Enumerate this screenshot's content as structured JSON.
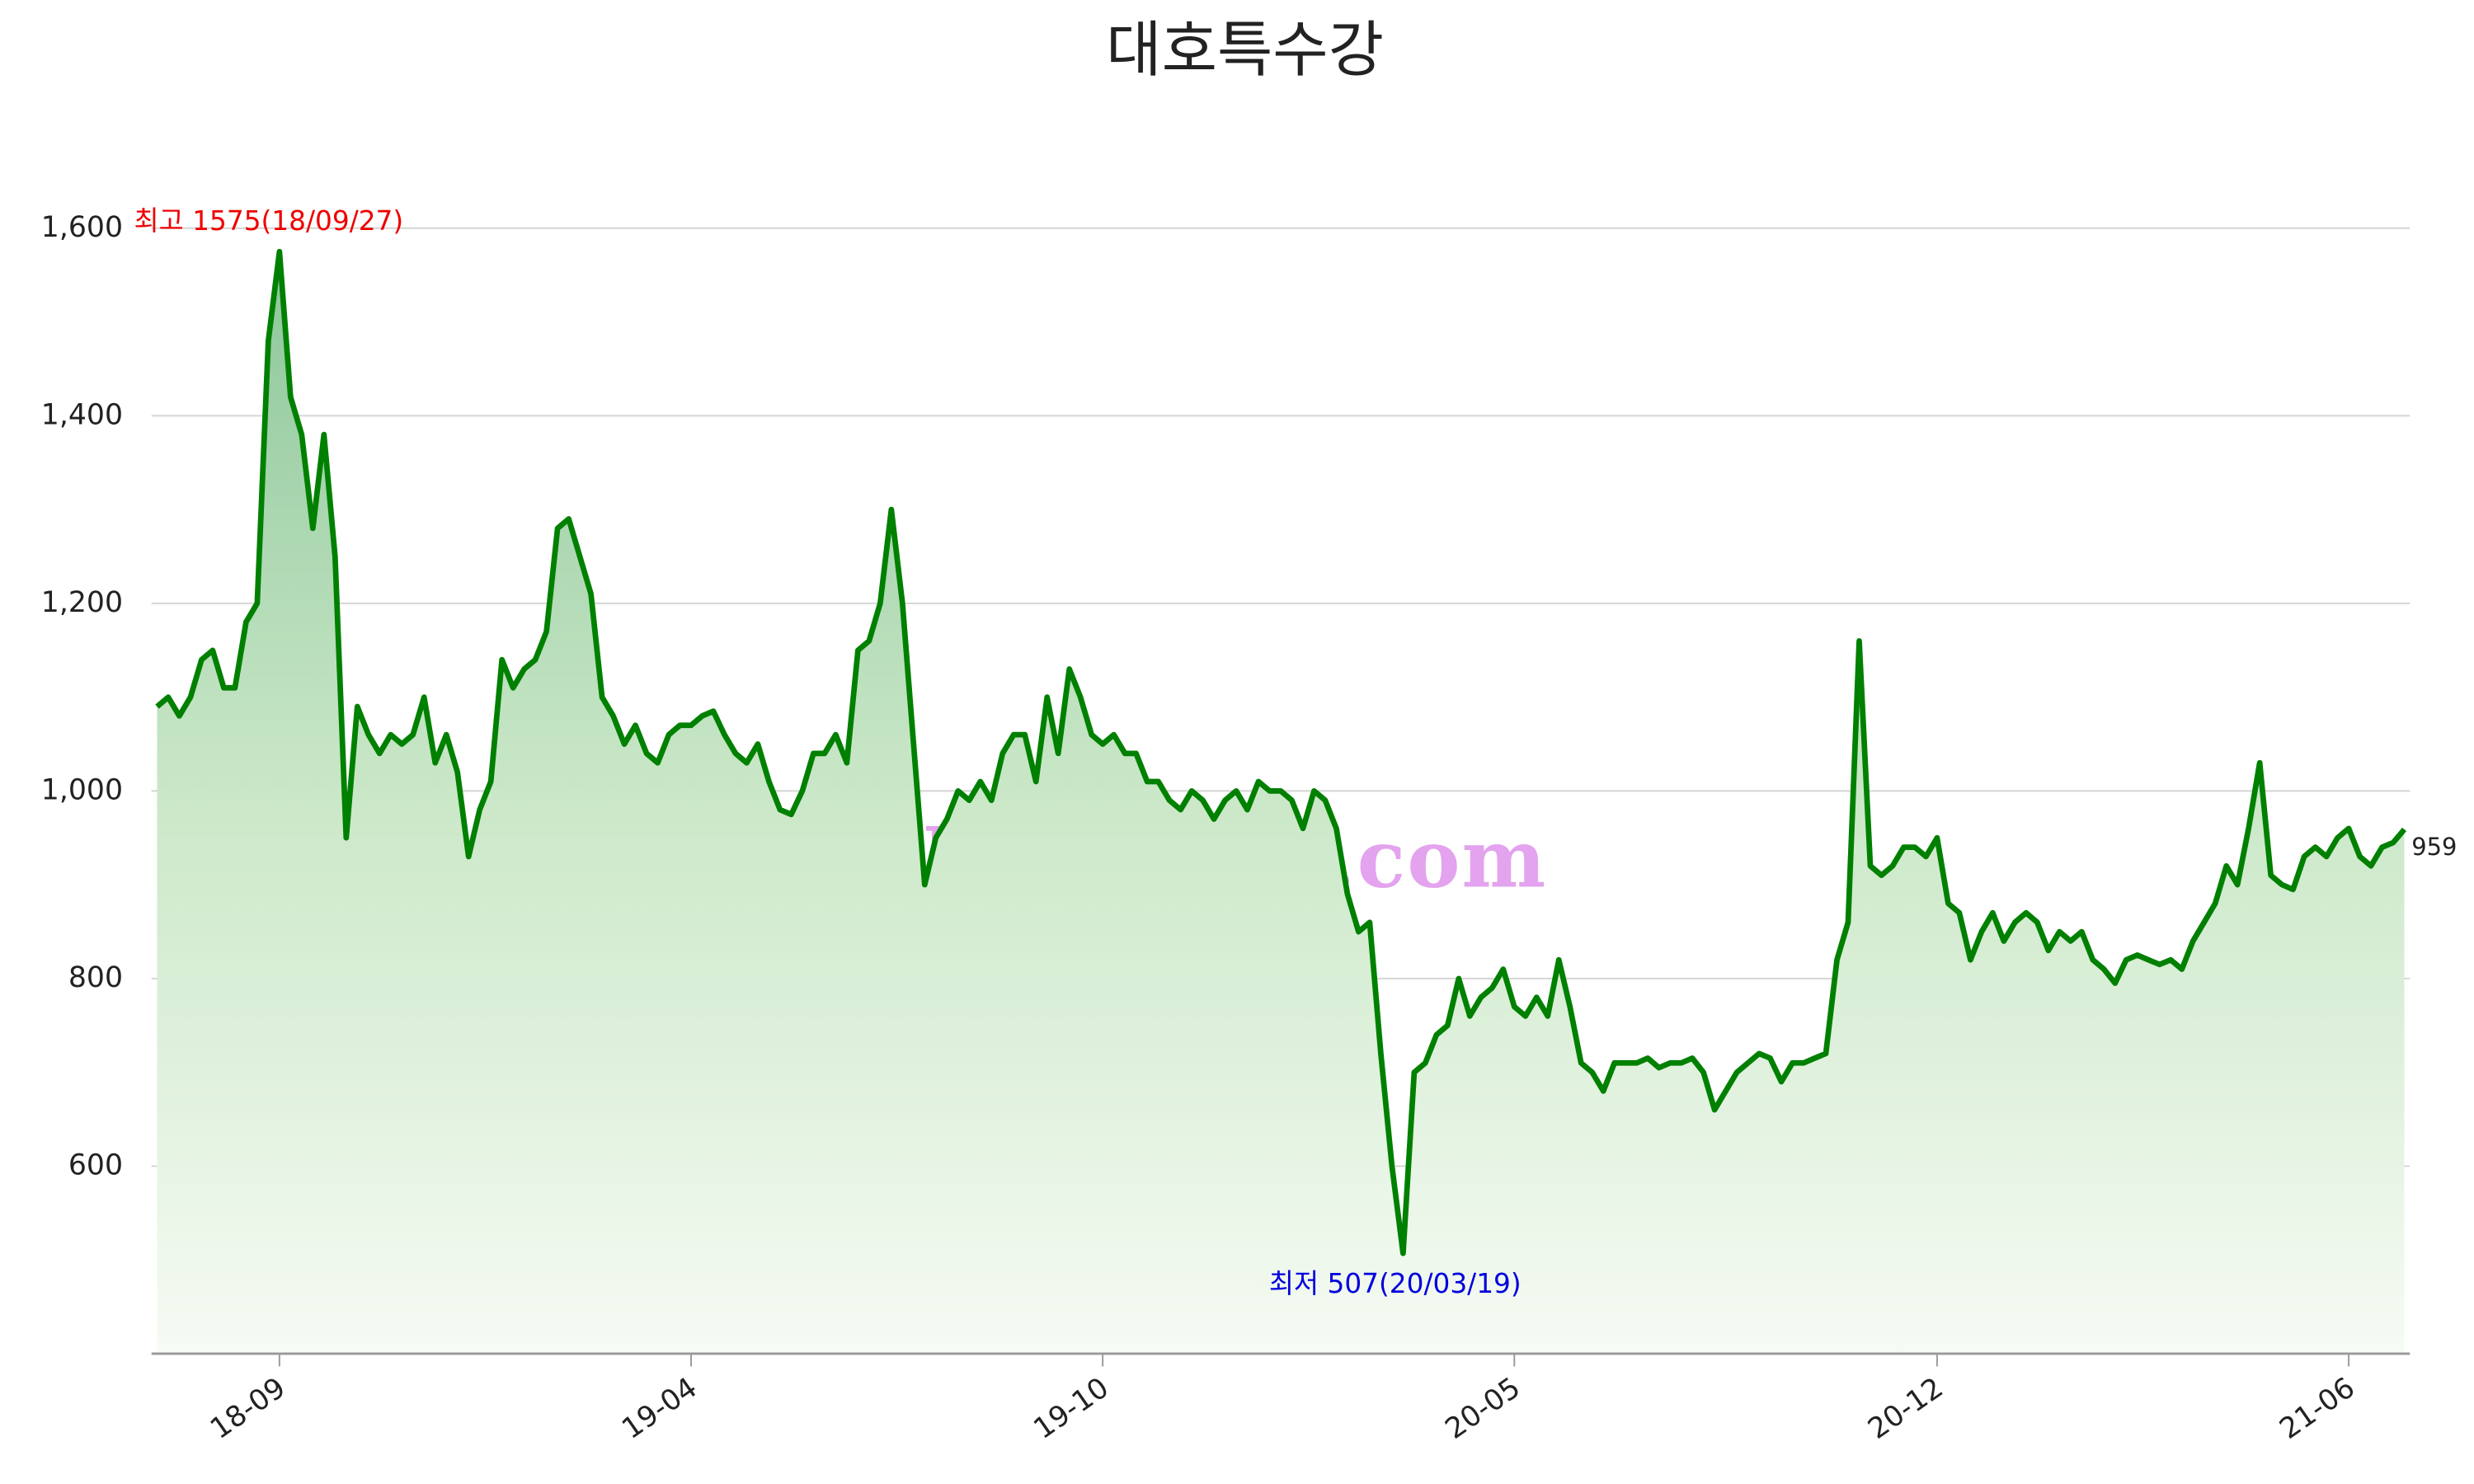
{
  "chart_data": {
    "type": "line",
    "title": "대호특수강",
    "categories": [
      null,
      null,
      null,
      null,
      null,
      null,
      null,
      null,
      null,
      null,
      null,
      "18-09",
      null,
      null,
      null,
      null,
      null,
      null,
      null,
      null,
      null,
      null,
      null,
      null,
      null,
      null,
      null,
      null,
      null,
      null,
      null,
      null,
      null,
      null,
      null,
      null,
      null,
      null,
      null,
      null,
      null,
      null,
      null,
      null,
      null,
      null,
      null,
      null,
      "19-04",
      null,
      null,
      null,
      null,
      null,
      null,
      null,
      null,
      null,
      null,
      null,
      null,
      null,
      null,
      null,
      null,
      null,
      null,
      null,
      null,
      null,
      null,
      null,
      null,
      null,
      null,
      null,
      null,
      null,
      null,
      null,
      null,
      null,
      null,
      null,
      null,
      "19-10",
      null,
      null,
      null,
      null,
      null,
      null,
      null,
      null,
      null,
      null,
      null,
      null,
      null,
      null,
      null,
      null,
      null,
      null,
      null,
      null,
      null,
      null,
      null,
      null,
      null,
      null,
      null,
      null,
      null,
      null,
      null,
      null,
      null,
      null,
      null,
      null,
      "20-05",
      null,
      null,
      null,
      null,
      null,
      null,
      null,
      null,
      null,
      null,
      null,
      null,
      null,
      null,
      null,
      null,
      null,
      null,
      null,
      null,
      null,
      null,
      null,
      null,
      null,
      null,
      null,
      null,
      null,
      null,
      null,
      null,
      null,
      null,
      null,
      null,
      null,
      "20-12",
      null,
      null,
      null,
      null,
      null,
      null,
      null,
      null,
      null,
      null,
      null,
      null,
      null,
      null,
      null,
      null,
      null,
      null,
      null,
      null,
      null,
      null,
      null,
      null,
      null,
      null,
      null,
      null,
      null,
      null,
      null,
      null,
      null,
      null,
      null,
      null,
      "21-06",
      null,
      null,
      null,
      null,
      null
    ],
    "values": [
      1090,
      1100,
      1080,
      1100,
      1140,
      1150,
      1110,
      1110,
      1180,
      1200,
      1480,
      1575,
      1420,
      1380,
      1280,
      1380,
      1250,
      950,
      1090,
      1060,
      1040,
      1060,
      1050,
      1060,
      1100,
      1030,
      1060,
      1020,
      930,
      980,
      1010,
      1140,
      1110,
      1130,
      1140,
      1170,
      1280,
      1290,
      1250,
      1210,
      1100,
      1080,
      1050,
      1070,
      1040,
      1030,
      1060,
      1070,
      1070,
      1080,
      1085,
      1060,
      1040,
      1030,
      1050,
      1010,
      980,
      975,
      1000,
      1040,
      1040,
      1060,
      1030,
      1150,
      1160,
      1200,
      1300,
      1200,
      1050,
      900,
      950,
      970,
      1000,
      990,
      1010,
      990,
      1040,
      1060,
      1060,
      1010,
      1100,
      1040,
      1130,
      1100,
      1060,
      1050,
      1060,
      1040,
      1040,
      1010,
      1010,
      990,
      980,
      1000,
      990,
      970,
      990,
      1000,
      980,
      1010,
      1000,
      1000,
      990,
      960,
      1000,
      990,
      960,
      890,
      850,
      860,
      720,
      600,
      507,
      700,
      710,
      740,
      750,
      800,
      760,
      780,
      790,
      810,
      770,
      760,
      780,
      760,
      820,
      770,
      710,
      700,
      680,
      710,
      710,
      710,
      715,
      705,
      710,
      710,
      715,
      700,
      660,
      680,
      700,
      710,
      720,
      715,
      690,
      710,
      710,
      715,
      720,
      820,
      860,
      1160,
      920,
      910,
      920,
      940,
      940,
      930,
      950,
      880,
      870,
      820,
      850,
      870,
      840,
      860,
      870,
      860,
      830,
      850,
      840,
      850,
      820,
      810,
      795,
      820,
      825,
      820,
      815,
      820,
      810,
      840,
      860,
      880,
      920,
      900,
      960,
      1030,
      910,
      900,
      895,
      930,
      940,
      930,
      950,
      960,
      930,
      920,
      940,
      945,
      959
    ],
    "color": "#008000",
    "ylim": [
      400,
      1640
    ],
    "yticks": [
      600,
      800,
      {
        "value": 1000,
        "label": "1,000"
      },
      {
        "value": 1200,
        "label": "1,200"
      },
      {
        "value": 1400,
        "label": "1,400"
      },
      {
        "value": 1600,
        "label": "1,600"
      }
    ],
    "grid": true,
    "annotations": {
      "high": "최고 1575(18/09/27)",
      "low": "최저 507(20/03/19)"
    },
    "watermark": "kindsimple.tistory.com"
  }
}
